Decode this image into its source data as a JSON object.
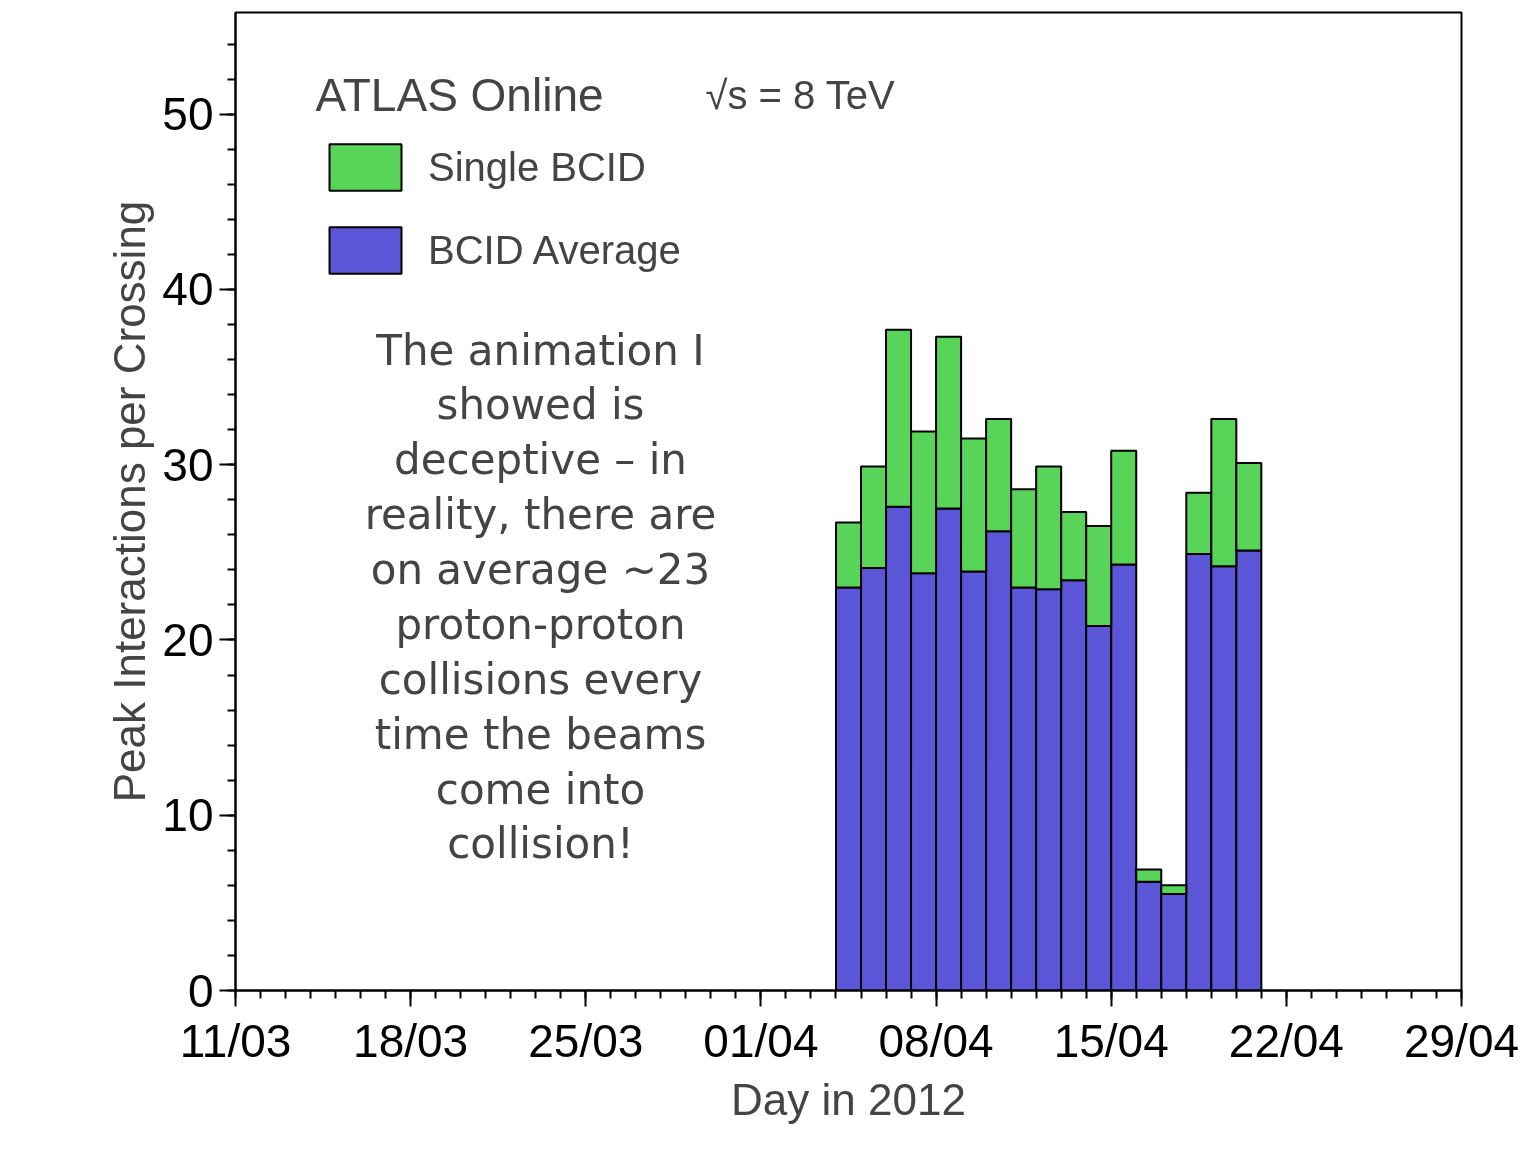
{
  "chart_data": {
    "type": "bar",
    "stacked": true,
    "xlabel": "Day in 2012",
    "ylabel": "Peak Interactions per Crossing",
    "x": [
      "2012-04-04T12:00",
      "2012-04-05T12:00",
      "2012-04-06T12:00",
      "2012-04-07T12:00",
      "2012-04-08T12:00",
      "2012-04-09T12:00",
      "2012-04-10T12:00",
      "2012-04-11T12:00",
      "2012-04-12T12:00",
      "2012-04-13T12:00",
      "2012-04-14T12:00",
      "2012-04-15T12:00",
      "2012-04-16T12:00",
      "2012-04-17T12:00",
      "2012-04-18T12:00",
      "2012-04-19T12:00",
      "2012-04-20T12:00"
    ],
    "series": [
      {
        "name": "BCID Average",
        "color": "#5b55d8",
        "values": [
          23.0,
          24.1,
          27.6,
          23.8,
          27.5,
          23.9,
          26.2,
          23.0,
          22.9,
          23.4,
          20.8,
          24.3,
          6.2,
          5.5,
          24.9,
          24.2,
          25.1
        ]
      },
      {
        "name": "Single BCID",
        "color": "#58d458",
        "values": [
          3.7,
          5.8,
          10.1,
          8.1,
          9.8,
          7.6,
          6.4,
          5.6,
          7.0,
          3.9,
          5.7,
          6.5,
          0.7,
          0.5,
          3.5,
          8.4,
          5.0
        ]
      }
    ],
    "xlim": [
      "2012-03-11",
      "2012-04-29"
    ],
    "xticks": [
      {
        "value": "2012-03-11",
        "label": "11/03"
      },
      {
        "value": "2012-03-18",
        "label": "18/03"
      },
      {
        "value": "2012-03-25",
        "label": "25/03"
      },
      {
        "value": "2012-04-01",
        "label": "01/04"
      },
      {
        "value": "2012-04-08",
        "label": "08/04"
      },
      {
        "value": "2012-04-15",
        "label": "15/04"
      },
      {
        "value": "2012-04-22",
        "label": "22/04"
      },
      {
        "value": "2012-04-29",
        "label": "29/04"
      }
    ],
    "ylim": [
      0,
      55.8
    ],
    "yticks": [
      0,
      10,
      20,
      30,
      40,
      50
    ],
    "legend": "top left",
    "grid": false,
    "annotations": [
      "ATLAS Online",
      "√s = 8 TeV",
      "The animation I\nshowed is\ndeceptive – in\nreality, there are\non average ~23\nproton-proton\ncollisions every\ntime the beams\ncome into\ncollision!"
    ]
  }
}
